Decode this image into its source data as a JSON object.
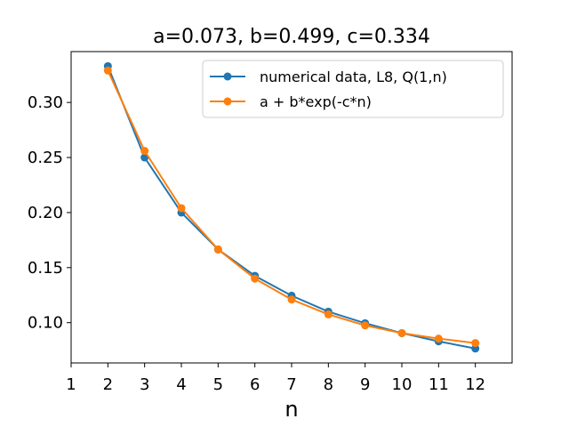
{
  "chart_data": {
    "type": "line",
    "title": "a=0.073, b=0.499, c=0.334",
    "xlabel": "n",
    "ylabel": "",
    "xlim": [
      1,
      13
    ],
    "ylim": [
      0.0634,
      0.3462
    ],
    "xticks": [
      1,
      2,
      3,
      4,
      5,
      6,
      7,
      8,
      9,
      10,
      11,
      12
    ],
    "yticks": [
      0.1,
      0.15,
      0.2,
      0.25,
      0.3
    ],
    "ytick_labels": [
      "0.10",
      "0.15",
      "0.20",
      "0.25",
      "0.30"
    ],
    "grid": false,
    "legend_position": "top-right",
    "x": [
      2,
      3,
      4,
      5,
      6,
      7,
      8,
      9,
      10,
      11,
      12
    ],
    "series": [
      {
        "name": "numerical data, L8, Q(1,n)",
        "color": "#1f77b4",
        "values": [
          0.333,
          0.25,
          0.2,
          0.1665,
          0.1425,
          0.1245,
          0.11,
          0.0995,
          0.0905,
          0.083,
          0.0765
        ]
      },
      {
        "name": "a + b*exp(-c*n)",
        "color": "#ff7f0e",
        "values": [
          0.329,
          0.256,
          0.204,
          0.1665,
          0.14,
          0.121,
          0.1075,
          0.0975,
          0.0905,
          0.0855,
          0.0815
        ]
      }
    ]
  }
}
